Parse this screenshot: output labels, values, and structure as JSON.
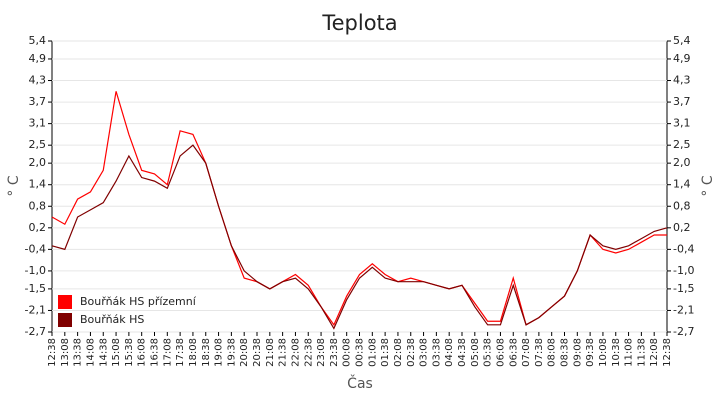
{
  "chart_data": {
    "type": "line",
    "title": "Teplota",
    "x_label": "Čas",
    "y_label": "° C",
    "categories": [
      "12:38",
      "13:08",
      "13:38",
      "14:08",
      "14:38",
      "15:08",
      "15:38",
      "16:08",
      "16:38",
      "17:08",
      "17:38",
      "18:08",
      "18:38",
      "19:08",
      "19:38",
      "20:08",
      "20:38",
      "21:08",
      "21:38",
      "22:08",
      "22:38",
      "23:08",
      "23:38",
      "00:08",
      "00:38",
      "01:08",
      "01:38",
      "02:08",
      "02:38",
      "03:08",
      "03:38",
      "04:08",
      "04:38",
      "05:08",
      "05:38",
      "06:08",
      "06:38",
      "07:08",
      "07:38",
      "08:08",
      "08:38",
      "09:08",
      "09:38",
      "10:08",
      "10:38",
      "11:08",
      "11:38",
      "12:08",
      "12:38"
    ],
    "series": [
      {
        "name": "Bouřňák HS přízemní",
        "color": "#ff0000",
        "values": [
          0.5,
          0.3,
          1.0,
          1.2,
          1.8,
          4.0,
          2.8,
          1.8,
          1.7,
          1.4,
          2.9,
          2.8,
          2.0,
          0.8,
          -0.3,
          -1.2,
          -1.3,
          -1.5,
          -1.3,
          -1.1,
          -1.4,
          -2.0,
          -2.5,
          -1.7,
          -1.1,
          -0.8,
          -1.1,
          -1.3,
          -1.2,
          -1.3,
          -1.4,
          -1.5,
          -1.4,
          -1.9,
          -2.4,
          -2.4,
          -1.2,
          -2.5,
          -2.3,
          -2.0,
          -1.7,
          -1.0,
          0.0,
          -0.4,
          -0.5,
          -0.4,
          -0.2,
          0.0,
          0.0
        ]
      },
      {
        "name": "Bouřňák HS",
        "color": "#800000",
        "values": [
          -0.3,
          -0.4,
          0.5,
          0.7,
          0.9,
          1.5,
          2.2,
          1.6,
          1.5,
          1.3,
          2.2,
          2.5,
          2.0,
          0.8,
          -0.3,
          -1.0,
          -1.3,
          -1.5,
          -1.3,
          -1.2,
          -1.5,
          -2.0,
          -2.6,
          -1.8,
          -1.2,
          -0.9,
          -1.2,
          -1.3,
          -1.3,
          -1.3,
          -1.4,
          -1.5,
          -1.4,
          -2.0,
          -2.5,
          -2.5,
          -1.4,
          -2.5,
          -2.3,
          -2.0,
          -1.7,
          -1.0,
          0.0,
          -0.3,
          -0.4,
          -0.3,
          -0.1,
          0.1,
          0.2
        ]
      }
    ],
    "ylim": [
      -2.7,
      5.4
    ],
    "yticks": [
      {
        "value": 5.4,
        "label": "5,4"
      },
      {
        "value": 4.9,
        "label": "4,9"
      },
      {
        "value": 4.3,
        "label": "4,3"
      },
      {
        "value": 3.7,
        "label": "3,7"
      },
      {
        "value": 3.1,
        "label": "3,1"
      },
      {
        "value": 2.5,
        "label": "2,5"
      },
      {
        "value": 2.0,
        "label": "2,0"
      },
      {
        "value": 1.4,
        "label": "1,4"
      },
      {
        "value": 0.8,
        "label": "0,8"
      },
      {
        "value": 0.2,
        "label": "0,2"
      },
      {
        "value": -0.4,
        "label": "-0,4"
      },
      {
        "value": -1.0,
        "label": "-1,0"
      },
      {
        "value": -1.5,
        "label": "-1,5"
      },
      {
        "value": -2.1,
        "label": "-2,1"
      },
      {
        "value": -2.7,
        "label": "-2,7"
      }
    ],
    "grid": true
  }
}
